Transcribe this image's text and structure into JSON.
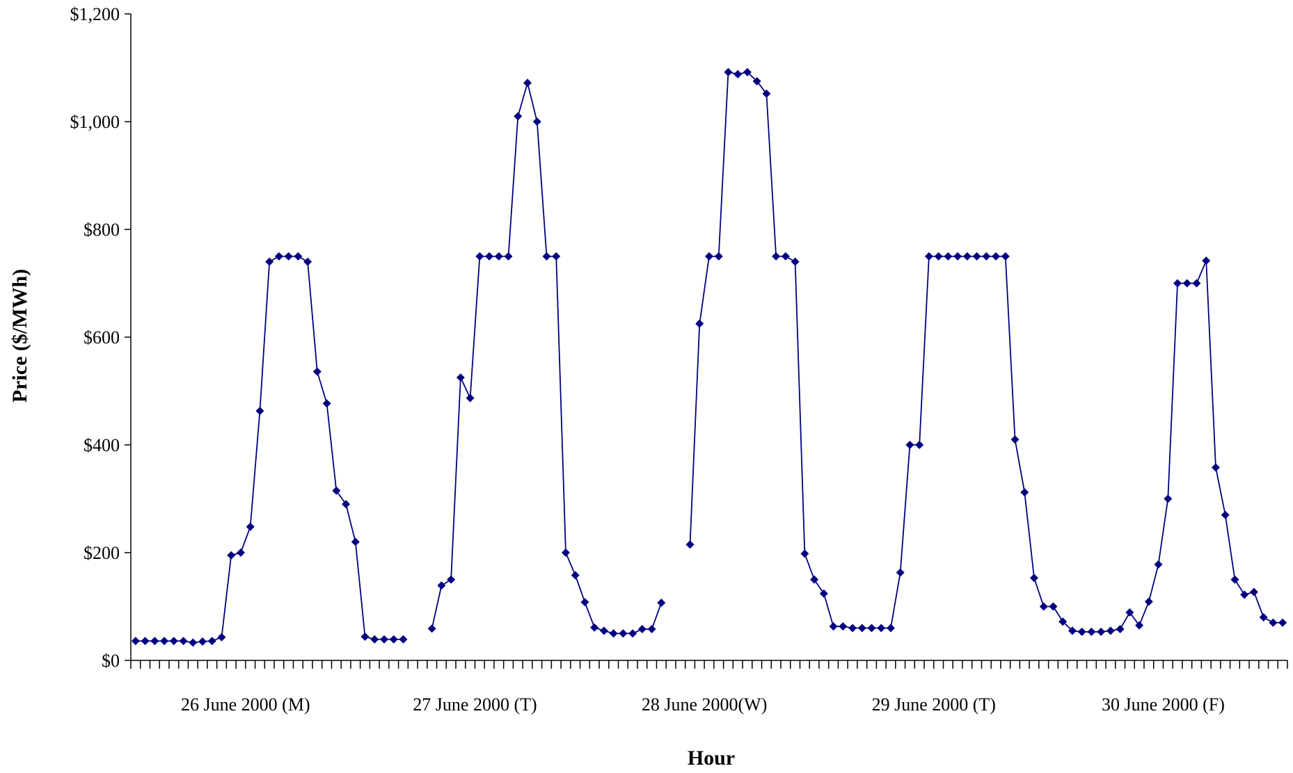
{
  "chart_data": {
    "type": "line",
    "title": "",
    "xlabel": "Hour",
    "ylabel": "Price ($/MWh)",
    "ylim": [
      0,
      1200
    ],
    "yticks": [
      0,
      200,
      400,
      600,
      800,
      1000,
      1200
    ],
    "ytick_labels": [
      "$0",
      "$200",
      "$400",
      "$600",
      "$800",
      "$1,000",
      "$1,200"
    ],
    "x_hours_per_day": 24,
    "day_labels": [
      "26 June 2000 (M)",
      "27 June 2000 (T)",
      "28 June 2000(W)",
      "29 June 2000 (T)",
      "30 June 2000 (F)"
    ],
    "grid": false,
    "legend": "none",
    "colors": {
      "series": "#000080"
    },
    "series": [
      {
        "values": [
          36,
          36,
          36,
          36,
          36,
          36,
          33,
          35,
          36,
          43,
          195,
          200,
          248,
          463,
          740,
          750,
          750,
          750,
          740,
          536,
          477,
          315,
          290,
          220,
          44,
          39,
          39,
          39,
          39,
          null,
          null,
          59,
          139,
          150,
          525,
          487,
          750,
          750,
          750,
          750,
          1010,
          1072,
          1000,
          750,
          750,
          200,
          158,
          108,
          61,
          55,
          50,
          50,
          50,
          58,
          58,
          107,
          null,
          null,
          215,
          625,
          750,
          750,
          1092,
          1088,
          1092,
          1075,
          1052,
          750,
          750,
          740,
          198,
          150,
          124,
          63,
          63,
          60,
          60,
          60,
          60,
          60,
          163,
          400,
          400,
          750,
          750,
          750,
          750,
          750,
          750,
          750,
          750,
          750,
          410,
          312,
          153,
          100,
          100,
          72,
          55,
          53,
          53,
          53,
          55,
          58,
          89,
          65,
          109,
          178,
          300,
          700,
          700,
          700,
          742,
          358,
          270,
          150,
          122,
          127,
          80,
          70,
          70
        ]
      }
    ]
  }
}
